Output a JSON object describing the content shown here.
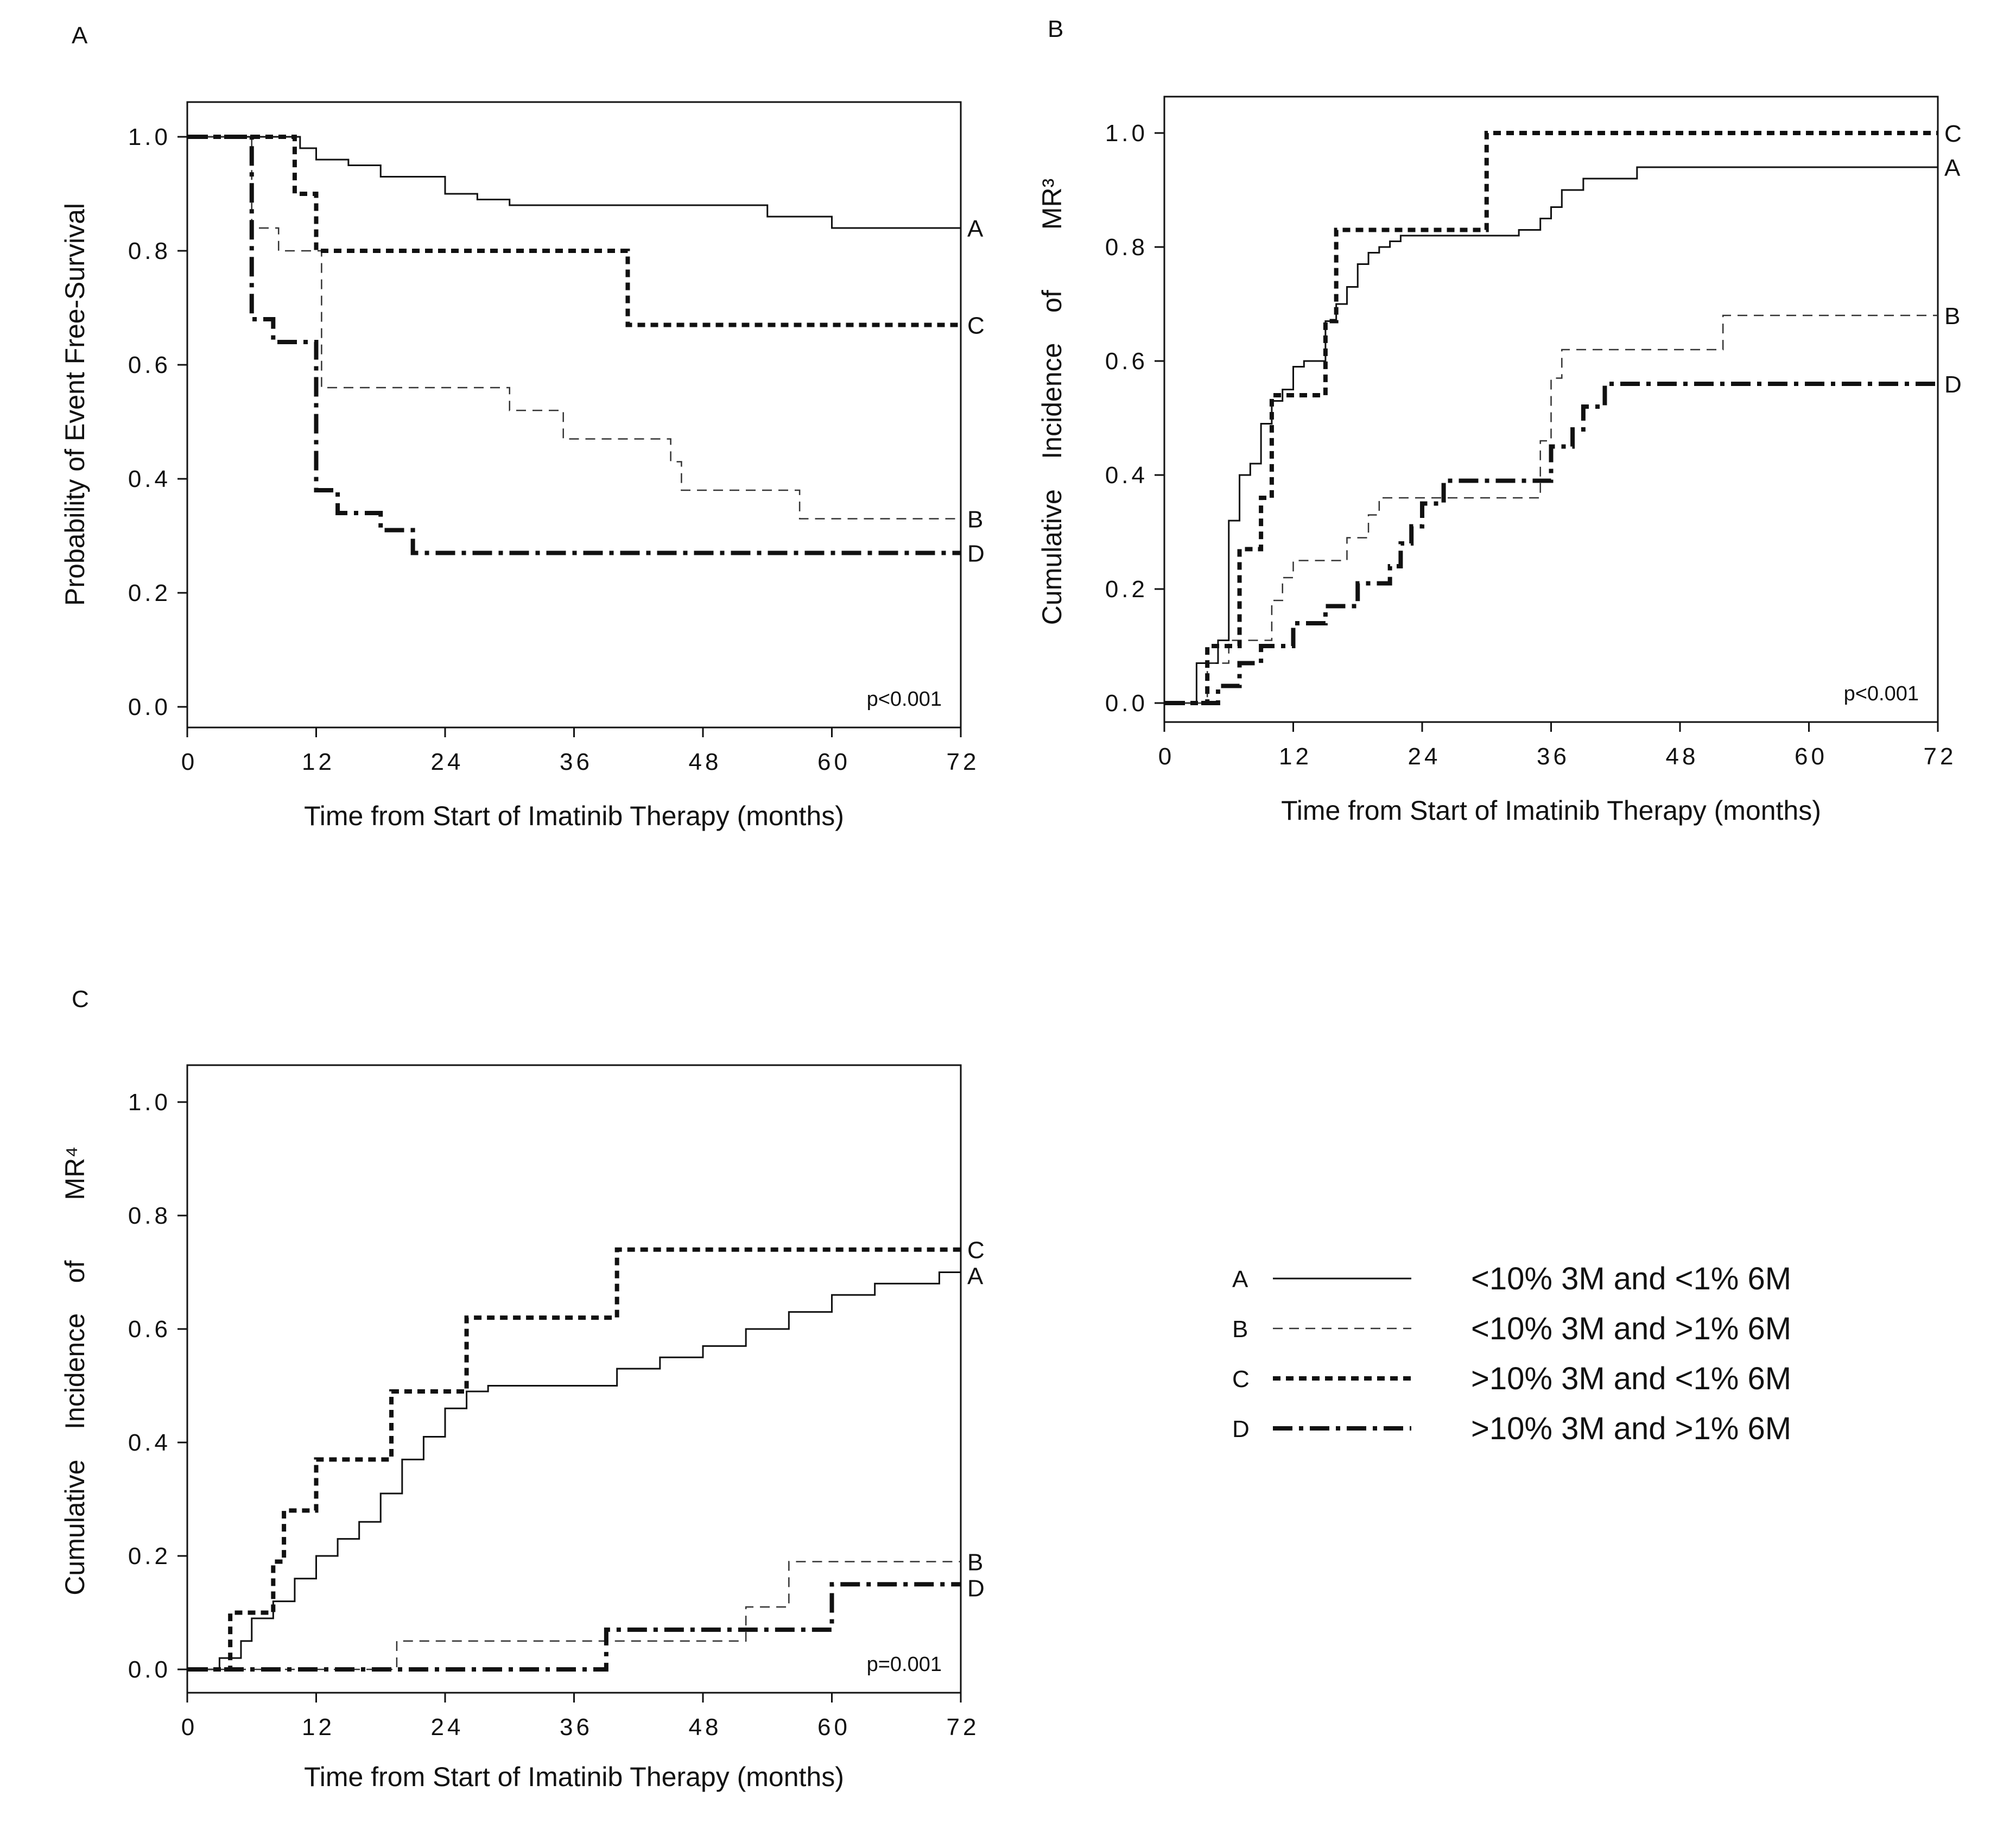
{
  "chart_data": [
    {
      "type": "line",
      "step": true,
      "panel_label": "A",
      "ylabel": "Probability of Event Free-Survival",
      "xlabel": "Time from Start of Imatinib Therapy (months)",
      "xlim": [
        0,
        72
      ],
      "ylim": [
        0,
        1
      ],
      "xticks": [
        "0",
        "12",
        "24",
        "36",
        "48",
        "60",
        "72"
      ],
      "yticks": [
        "0.0",
        "0.2",
        "0.4",
        "0.6",
        "0.8",
        "1.0"
      ],
      "annotation": "p<0.001",
      "series": [
        {
          "name": "A",
          "style": "A",
          "x": [
            0,
            10.5,
            12,
            15,
            18,
            24,
            27,
            30,
            54,
            60,
            72
          ],
          "y": [
            1.0,
            0.98,
            0.96,
            0.95,
            0.93,
            0.9,
            0.89,
            0.88,
            0.86,
            0.84,
            0.84
          ]
        },
        {
          "name": "B",
          "style": "B",
          "x": [
            0,
            6,
            8.5,
            12,
            12.5,
            30,
            35,
            45,
            46,
            57,
            72
          ],
          "y": [
            1.0,
            0.84,
            0.8,
            0.8,
            0.56,
            0.52,
            0.47,
            0.43,
            0.38,
            0.33,
            0.33
          ]
        },
        {
          "name": "C",
          "style": "C",
          "x": [
            0,
            10,
            12,
            41,
            72
          ],
          "y": [
            1.0,
            0.9,
            0.8,
            0.67,
            0.67
          ]
        },
        {
          "name": "D",
          "style": "D",
          "x": [
            0,
            6,
            8,
            12,
            14,
            18,
            21,
            72
          ],
          "y": [
            1.0,
            0.68,
            0.64,
            0.38,
            0.34,
            0.31,
            0.27,
            0.27
          ]
        }
      ]
    },
    {
      "type": "line",
      "step": true,
      "panel_label": "B",
      "ylabel": "Cumulative    Incidence    of        MR³",
      "xlabel": "Time from Start of Imatinib Therapy (months)",
      "xlim": [
        0,
        72
      ],
      "ylim": [
        0,
        1
      ],
      "xticks": [
        "0",
        "12",
        "24",
        "36",
        "48",
        "60",
        "72"
      ],
      "yticks": [
        "0.0",
        "0.2",
        "0.4",
        "0.6",
        "0.8",
        "1.0"
      ],
      "annotation": "p<0.001",
      "series": [
        {
          "name": "A",
          "style": "A",
          "x": [
            0,
            3,
            5,
            6,
            7,
            8,
            9,
            10,
            11,
            12,
            13,
            15,
            16,
            17,
            18,
            19,
            20,
            21,
            22,
            24,
            30,
            33,
            35,
            36,
            37,
            39,
            44,
            72
          ],
          "y": [
            0,
            0.07,
            0.11,
            0.32,
            0.4,
            0.42,
            0.49,
            0.53,
            0.55,
            0.59,
            0.6,
            0.67,
            0.7,
            0.73,
            0.77,
            0.79,
            0.8,
            0.81,
            0.82,
            0.82,
            0.82,
            0.83,
            0.85,
            0.87,
            0.9,
            0.92,
            0.94,
            0.94
          ]
        },
        {
          "name": "B",
          "style": "B",
          "x": [
            0,
            4,
            6,
            9,
            10,
            11,
            12,
            14,
            17,
            19,
            20,
            24,
            35,
            36,
            37,
            52,
            72
          ],
          "y": [
            0,
            0.07,
            0.11,
            0.11,
            0.18,
            0.22,
            0.25,
            0.25,
            0.29,
            0.33,
            0.36,
            0.36,
            0.46,
            0.57,
            0.62,
            0.68,
            0.68
          ]
        },
        {
          "name": "C",
          "style": "C",
          "x": [
            0,
            4,
            6,
            7,
            9,
            10,
            15,
            16,
            30,
            72
          ],
          "y": [
            0,
            0.1,
            0.1,
            0.27,
            0.36,
            0.54,
            0.67,
            0.83,
            1.0,
            1.0
          ]
        },
        {
          "name": "D",
          "style": "D",
          "x": [
            0,
            5,
            7,
            9,
            12,
            15,
            18,
            21,
            22,
            23,
            24,
            26,
            36,
            38,
            39,
            41,
            72
          ],
          "y": [
            0,
            0.03,
            0.07,
            0.1,
            0.14,
            0.17,
            0.21,
            0.24,
            0.28,
            0.31,
            0.35,
            0.39,
            0.45,
            0.48,
            0.52,
            0.56,
            0.56
          ]
        }
      ]
    },
    {
      "type": "line",
      "step": true,
      "panel_label": "C",
      "ylabel": "Cumulative    Incidence    of        MR⁴",
      "xlabel": "Time from Start of Imatinib Therapy (months)",
      "xlim": [
        0,
        72
      ],
      "ylim": [
        0,
        1
      ],
      "xticks": [
        "0",
        "12",
        "24",
        "36",
        "48",
        "60",
        "72"
      ],
      "yticks": [
        "0.0",
        "0.2",
        "0.4",
        "0.6",
        "0.8",
        "1.0"
      ],
      "annotation": "p=0.001",
      "series": [
        {
          "name": "A",
          "style": "A",
          "x": [
            0,
            3,
            5,
            6,
            8,
            10,
            12,
            14,
            16,
            18,
            20,
            22,
            24,
            26,
            28,
            36,
            40,
            44,
            48,
            52,
            56,
            60,
            64,
            70,
            72
          ],
          "y": [
            0,
            0.02,
            0.05,
            0.09,
            0.12,
            0.16,
            0.2,
            0.23,
            0.26,
            0.31,
            0.37,
            0.41,
            0.46,
            0.49,
            0.5,
            0.5,
            0.53,
            0.55,
            0.57,
            0.6,
            0.63,
            0.66,
            0.68,
            0.7,
            0.71
          ]
        },
        {
          "name": "B",
          "style": "B",
          "x": [
            0,
            19.5,
            52,
            56,
            72
          ],
          "y": [
            0,
            0.05,
            0.11,
            0.19,
            0.19
          ]
        },
        {
          "name": "C",
          "style": "C",
          "x": [
            0,
            4,
            8,
            9,
            12,
            19,
            26,
            40,
            72
          ],
          "y": [
            0,
            0.1,
            0.19,
            0.28,
            0.37,
            0.49,
            0.62,
            0.74,
            0.74
          ]
        },
        {
          "name": "D",
          "style": "D",
          "x": [
            0,
            39,
            60,
            72
          ],
          "y": [
            0,
            0.07,
            0.15,
            0.15
          ]
        }
      ]
    }
  ],
  "legend": [
    {
      "key": "A",
      "style": "A",
      "label": "<10% 3M and <1% 6M"
    },
    {
      "key": "B",
      "style": "B",
      "label": "<10% 3M and >1% 6M"
    },
    {
      "key": "C",
      "style": "C",
      "label": ">10% 3M and <1% 6M"
    },
    {
      "key": "D",
      "style": "D",
      "label": ">10% 3M and >1% 6M"
    }
  ],
  "line_styles": {
    "A": {
      "color": "#111111",
      "dash": "",
      "weight": "thin-solid"
    },
    "B": {
      "color": "#333333",
      "dash": "18 12",
      "weight": "thin-dashed"
    },
    "C": {
      "color": "#111111",
      "dash": "14 10",
      "weight": "thick-dotted"
    },
    "D": {
      "color": "#111111",
      "dash": "36 12 8 12",
      "weight": "thick-dashdot"
    }
  }
}
